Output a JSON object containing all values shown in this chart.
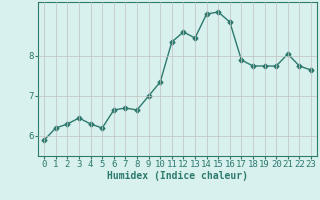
{
  "title": "",
  "xlabel": "Humidex (Indice chaleur)",
  "ylabel": "",
  "x": [
    0,
    1,
    2,
    3,
    4,
    5,
    6,
    7,
    8,
    9,
    10,
    11,
    12,
    13,
    14,
    15,
    16,
    17,
    18,
    19,
    20,
    21,
    22,
    23
  ],
  "y": [
    5.9,
    6.2,
    6.3,
    6.45,
    6.3,
    6.2,
    6.65,
    6.7,
    6.65,
    7.0,
    7.35,
    8.35,
    8.6,
    8.45,
    9.05,
    9.1,
    8.85,
    7.9,
    7.75,
    7.75,
    7.75,
    8.05,
    7.75,
    7.65
  ],
  "line_color": "#2d7a6e",
  "marker": "D",
  "marker_size": 2.5,
  "line_width": 1.0,
  "bg_color": "#d8f0ee",
  "grid_color": "#c0c0c0",
  "tick_color": "#2d7a6e",
  "label_color": "#2d7a6e",
  "ylim": [
    5.5,
    9.35
  ],
  "yticks": [
    6,
    7,
    8
  ],
  "xlim": [
    -0.5,
    23.5
  ],
  "xticks": [
    0,
    1,
    2,
    3,
    4,
    5,
    6,
    7,
    8,
    9,
    10,
    11,
    12,
    13,
    14,
    15,
    16,
    17,
    18,
    19,
    20,
    21,
    22,
    23
  ],
  "xlabel_fontsize": 7,
  "tick_fontsize": 6.5
}
